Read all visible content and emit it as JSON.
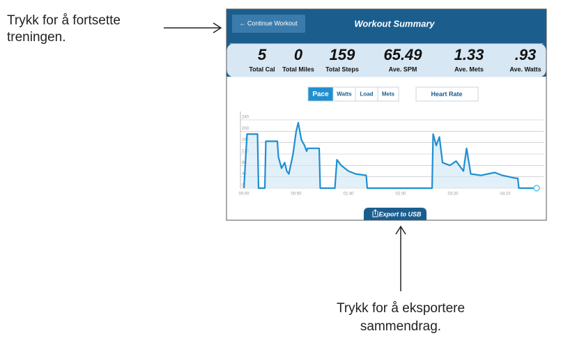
{
  "annotations": {
    "top_left": [
      "Trykk for å fortsette",
      "treningen."
    ],
    "bottom": [
      "Trykk for å eksportere",
      "sammendrag."
    ]
  },
  "header": {
    "back_button": "← Continue Workout",
    "title": "Workout Summary"
  },
  "stats": [
    {
      "value": "5",
      "label": "Total Cal"
    },
    {
      "value": "0",
      "label": "Total Miles"
    },
    {
      "value": "159",
      "label": "Total Steps"
    },
    {
      "value": "65.49",
      "label": "Ave. SPM"
    },
    {
      "value": "1.33",
      "label": "Ave. Mets"
    },
    {
      "value": ".93",
      "label": "Ave. Watts"
    }
  ],
  "tabs": [
    "Pace",
    "Watts",
    "Load",
    "Mets"
  ],
  "active_tab": 0,
  "heart_rate_button": "Heart Rate",
  "export_button": "Export to USB",
  "chart_data": {
    "type": "line",
    "color": "#1f8fd0",
    "x": [
      0,
      3,
      13,
      14,
      20,
      21,
      32,
      33,
      36,
      39,
      41,
      43,
      47,
      50,
      52,
      55,
      58,
      60,
      61,
      72,
      73,
      87,
      89,
      93,
      100,
      107,
      117,
      118,
      180,
      181,
      184,
      187,
      190,
      197,
      203,
      210,
      213,
      217,
      227,
      240,
      247,
      260,
      262,
      263,
      280
    ],
    "values": [
      0,
      190,
      190,
      0,
      0,
      165,
      165,
      110,
      70,
      90,
      60,
      50,
      120,
      200,
      230,
      170,
      150,
      130,
      140,
      140,
      0,
      0,
      100,
      80,
      60,
      50,
      45,
      0,
      0,
      190,
      150,
      180,
      90,
      80,
      95,
      60,
      140,
      50,
      45,
      55,
      45,
      35,
      35,
      0,
      0
    ],
    "xlim": [
      0,
      280
    ],
    "xticks": [
      {
        "value": 0,
        "label": "00:00"
      },
      {
        "value": 50,
        "label": "00:50"
      },
      {
        "value": 100,
        "label": "01:40"
      },
      {
        "value": 150,
        "label": "02:30"
      },
      {
        "value": 200,
        "label": "03:20"
      },
      {
        "value": 250,
        "label": "04:10"
      }
    ],
    "ylim": [
      0,
      240
    ],
    "yticks": [
      0,
      40,
      80,
      120,
      160,
      200,
      240
    ],
    "grid": true
  }
}
